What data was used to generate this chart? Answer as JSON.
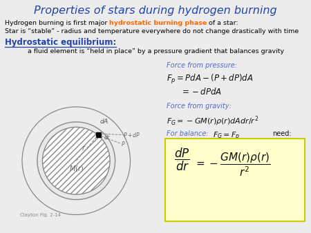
{
  "title": "Properties of stars during hydrogen burning",
  "title_color": "#2244aa",
  "bg_color": "#ececec",
  "line1_normal": "Hydrogen burning is first major ",
  "line1_highlight": "hydrostatic burning phase",
  "line1_end": " of a star:",
  "highlight_color": "#ff6600",
  "line2": "Star is “stable” - radius and temperature everywhere do not change drastically with time",
  "section_title": "Hydrostatic equilibrium:",
  "section_color": "#2244aa",
  "fluid_text": "a fluid element is “held in place” by a pressure gradient that balances gravity",
  "caption": "Clayton Fig. 2-14",
  "pressure_label": "Force from pressure:",
  "gravity_label": "Force from gravity:",
  "balance_label": "For balance:",
  "balance_need": "need:",
  "box_color": "#ffffcc",
  "box_border_color": "#cccc00",
  "eq_color": "#111111",
  "label_color": "#5566cc"
}
